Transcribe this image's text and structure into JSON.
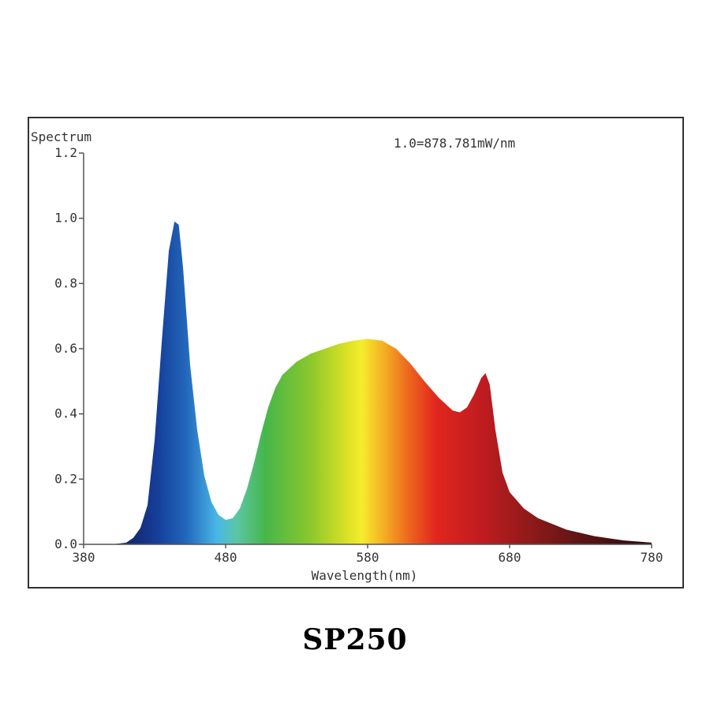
{
  "caption": "SP250",
  "chart_data": {
    "type": "area",
    "title": "",
    "ylabel": "Spectrum",
    "xlabel": "Wavelength(nm)",
    "annotation": "1.0=878.781mW/nm",
    "xlim": [
      380,
      780
    ],
    "ylim": [
      0,
      1.2
    ],
    "x_ticks": [
      "380",
      "480",
      "580",
      "680",
      "780"
    ],
    "y_ticks": [
      "0.0",
      "0.2",
      "0.4",
      "0.6",
      "0.8",
      "1.0",
      "1.2"
    ],
    "grid": false,
    "fill": "visible-spectrum-gradient",
    "series": [
      {
        "x": [
          380,
          400,
          410,
          415,
          420,
          425,
          430,
          435,
          440,
          444,
          447,
          450,
          455,
          460,
          465,
          470,
          475,
          480,
          485,
          490,
          495,
          500,
          505,
          510,
          515,
          520,
          530,
          540,
          550,
          560,
          570,
          580,
          590,
          600,
          610,
          620,
          630,
          640,
          645,
          650,
          655,
          660,
          663,
          666,
          670,
          675,
          680,
          690,
          700,
          720,
          740,
          760,
          780
        ],
        "y": [
          0.0,
          0.0,
          0.005,
          0.02,
          0.05,
          0.12,
          0.32,
          0.62,
          0.9,
          0.99,
          0.98,
          0.85,
          0.55,
          0.35,
          0.21,
          0.13,
          0.09,
          0.075,
          0.08,
          0.11,
          0.17,
          0.25,
          0.34,
          0.42,
          0.48,
          0.52,
          0.56,
          0.585,
          0.6,
          0.615,
          0.625,
          0.63,
          0.625,
          0.6,
          0.555,
          0.5,
          0.45,
          0.41,
          0.405,
          0.42,
          0.46,
          0.51,
          0.525,
          0.49,
          0.35,
          0.22,
          0.16,
          0.11,
          0.08,
          0.045,
          0.025,
          0.012,
          0.005
        ]
      }
    ]
  }
}
